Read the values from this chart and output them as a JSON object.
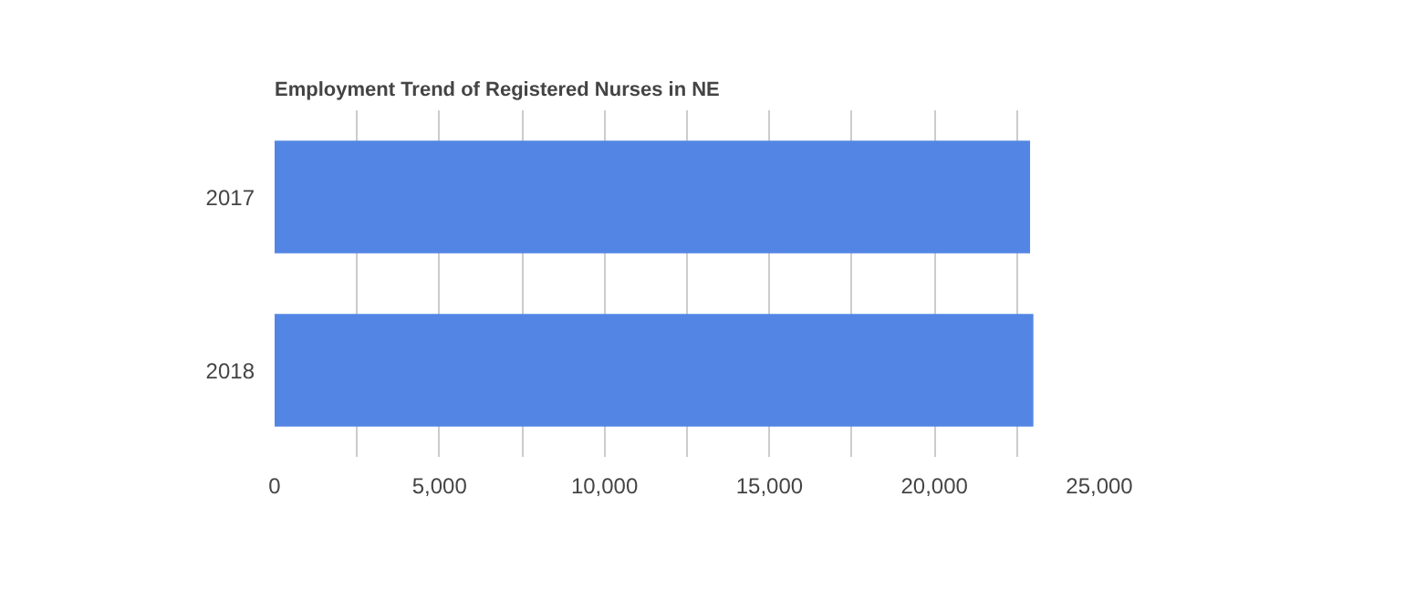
{
  "chart_data": {
    "type": "bar",
    "orientation": "horizontal",
    "title": "Employment Trend of Registered Nurses in NE",
    "categories": [
      "2017",
      "2018"
    ],
    "values": [
      22900,
      23000
    ],
    "color": "#5386e4",
    "xlim": [
      0,
      25000
    ],
    "xticks": [
      0,
      {
        "value": 2500,
        "label": null
      },
      "5,000",
      {
        "value": 7500,
        "label": null
      },
      {
        "value": 10000,
        "label": "10,000"
      },
      {
        "value": 12500,
        "label": null
      },
      {
        "value": 15000,
        "label": "15,000"
      },
      {
        "value": 17500,
        "label": null
      },
      {
        "value": 20000,
        "label": "20,000"
      },
      {
        "value": 22500,
        "label": null
      },
      {
        "value": 25000,
        "label": "25,000"
      }
    ],
    "grid": "x"
  }
}
